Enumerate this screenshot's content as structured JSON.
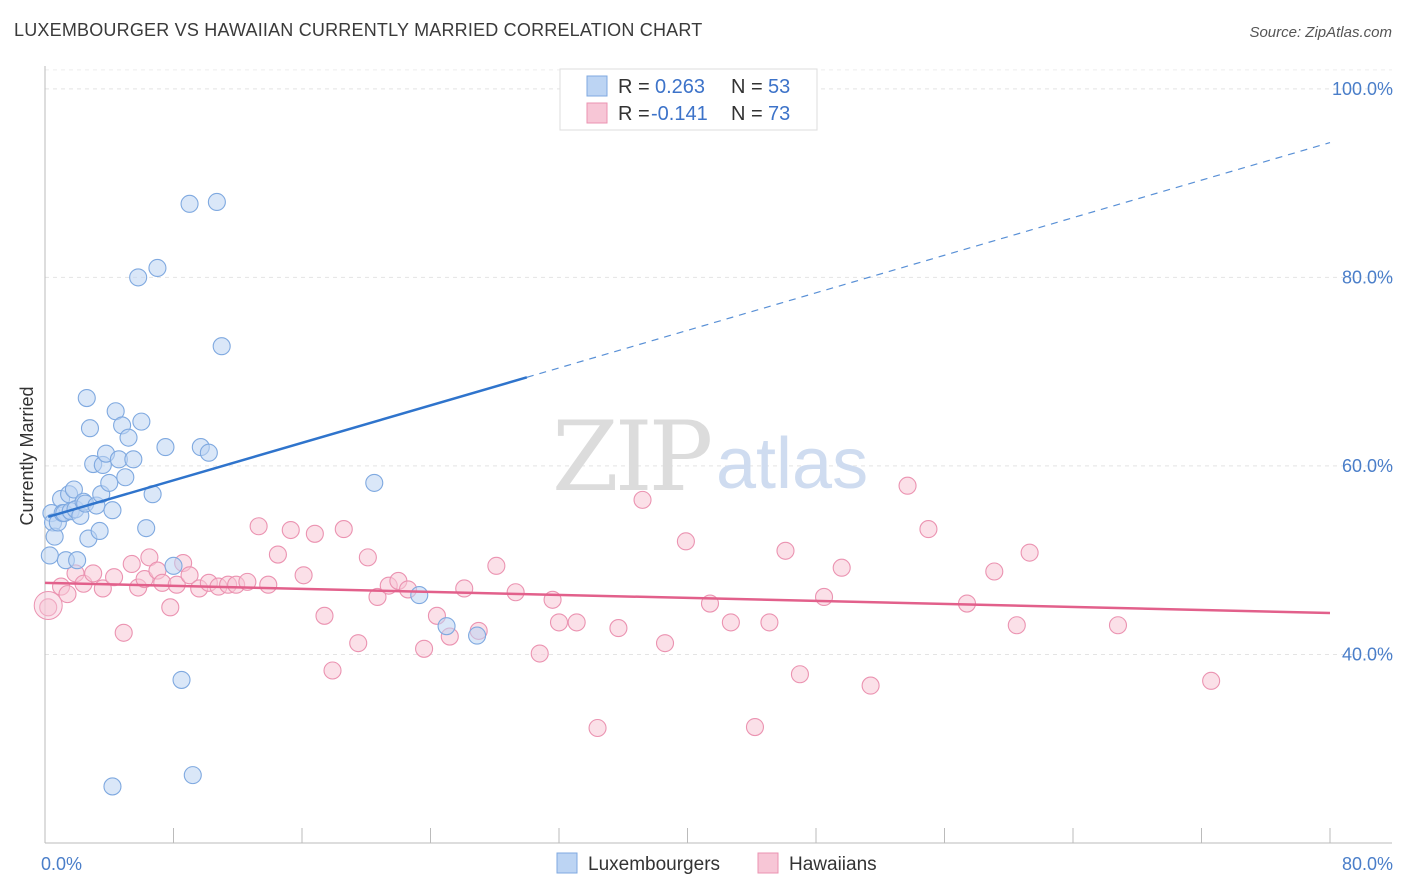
{
  "title": "LUXEMBOURGER VS HAWAIIAN CURRENTLY MARRIED CORRELATION CHART",
  "source": "Source: ZipAtlas.com",
  "watermark": {
    "part1": "ZIP",
    "part2": "atlas"
  },
  "legend": {
    "rows": [
      {
        "r_label": "R =",
        "r_value": "0.263",
        "n_label": "N =",
        "n_value": "53"
      },
      {
        "r_label": "R =",
        "r_value": "-0.141",
        "n_label": "N =",
        "n_value": "73"
      }
    ]
  },
  "chart_data": {
    "type": "scatter",
    "title": "LUXEMBOURGER VS HAWAIIAN CURRENTLY MARRIED CORRELATION CHART",
    "xlabel": "",
    "ylabel": "Currently Married",
    "xlim": [
      0,
      80
    ],
    "ylim": [
      20,
      102
    ],
    "x_tick_labels": [
      {
        "value": 0,
        "label": "0.0%"
      },
      {
        "value": 80,
        "label": "80.0%"
      }
    ],
    "y_tick_labels": [
      {
        "value": 100,
        "label": "100.0%"
      },
      {
        "value": 80,
        "label": "80.0%"
      },
      {
        "value": 60,
        "label": "60.0%"
      },
      {
        "value": 40,
        "label": "40.0%"
      }
    ],
    "grid": true,
    "legend_position": "top-center",
    "series": [
      {
        "name": "Luxembourgers",
        "color": "#7fa9e0",
        "fill": "#bcd4f3",
        "trend_color": "#2f74cc",
        "trend": {
          "x_start": 0.2,
          "y_start": 54.6,
          "x_solid_end": 30.0,
          "y_solid_end": 69.4,
          "x_end": 80.0,
          "y_end": 94.3
        },
        "x": [
          0.3,
          0.4,
          0.5,
          0.6,
          0.8,
          1.0,
          1.1,
          1.2,
          1.3,
          1.5,
          1.6,
          1.8,
          1.9,
          2.0,
          2.2,
          2.4,
          2.5,
          2.6,
          2.7,
          2.8,
          3.0,
          3.2,
          3.4,
          3.5,
          3.6,
          3.8,
          4.0,
          4.2,
          4.4,
          4.6,
          4.8,
          5.0,
          5.2,
          5.5,
          5.8,
          6.0,
          6.3,
          6.7,
          7.0,
          7.5,
          8.0,
          8.5,
          9.0,
          9.7,
          10.2,
          10.7,
          11.0,
          20.5,
          23.3,
          25.0,
          26.9,
          4.2,
          9.2
        ],
        "y": [
          50.5,
          55.0,
          54.0,
          52.5,
          54.0,
          56.5,
          55.0,
          55.0,
          50.0,
          57.0,
          55.2,
          57.5,
          55.4,
          50.0,
          54.7,
          56.2,
          56.0,
          67.2,
          52.3,
          64.0,
          60.2,
          55.8,
          53.1,
          57.0,
          60.1,
          61.3,
          58.2,
          55.3,
          65.8,
          60.7,
          64.3,
          58.8,
          63.0,
          60.7,
          80.0,
          64.7,
          53.4,
          57.0,
          81.0,
          62.0,
          49.4,
          37.3,
          87.8,
          62.0,
          61.4,
          88.0,
          72.7,
          58.2,
          46.3,
          43.0,
          42.0,
          26.0,
          27.2
        ]
      },
      {
        "name": "Hawaiians",
        "color": "#eb93b1",
        "fill": "#f7c6d6",
        "trend_color": "#e2608b",
        "trend": {
          "x_start": 0.0,
          "y_start": 47.6,
          "x_end": 80.0,
          "y_end": 44.4
        },
        "x": [
          0.2,
          1.0,
          1.4,
          1.9,
          2.4,
          3.0,
          3.6,
          4.3,
          4.9,
          5.4,
          5.8,
          6.2,
          6.5,
          7.0,
          7.3,
          7.8,
          8.2,
          8.6,
          9.0,
          9.6,
          10.2,
          10.8,
          11.4,
          11.9,
          12.6,
          13.3,
          13.9,
          14.5,
          15.3,
          16.1,
          16.8,
          17.4,
          17.9,
          18.6,
          19.5,
          20.1,
          20.7,
          21.4,
          22.0,
          22.6,
          23.6,
          24.4,
          25.2,
          26.1,
          27.0,
          28.1,
          29.3,
          30.8,
          31.6,
          32.0,
          33.1,
          34.4,
          35.7,
          37.2,
          38.6,
          39.9,
          41.4,
          42.7,
          44.2,
          45.1,
          46.1,
          47.0,
          48.5,
          49.6,
          51.4,
          53.7,
          55.0,
          57.4,
          59.1,
          60.5,
          61.3,
          66.8,
          72.6
        ],
        "y": [
          45.0,
          47.2,
          46.4,
          48.6,
          47.5,
          48.6,
          47.0,
          48.2,
          42.3,
          49.6,
          47.1,
          48.0,
          50.3,
          48.9,
          47.6,
          45.0,
          47.4,
          49.7,
          48.4,
          47.0,
          47.6,
          47.2,
          47.4,
          47.4,
          47.7,
          53.6,
          47.4,
          50.6,
          53.2,
          48.4,
          52.8,
          44.1,
          38.3,
          53.3,
          41.2,
          50.3,
          46.1,
          47.3,
          47.8,
          46.9,
          40.6,
          44.1,
          41.9,
          47.0,
          42.5,
          49.4,
          46.6,
          40.1,
          45.8,
          43.4,
          43.4,
          32.2,
          42.8,
          56.4,
          41.2,
          52.0,
          45.4,
          43.4,
          32.3,
          43.4,
          51.0,
          37.9,
          46.1,
          49.2,
          36.7,
          57.9,
          53.3,
          45.4,
          48.8,
          43.1,
          50.8,
          43.1,
          37.2
        ]
      }
    ]
  }
}
